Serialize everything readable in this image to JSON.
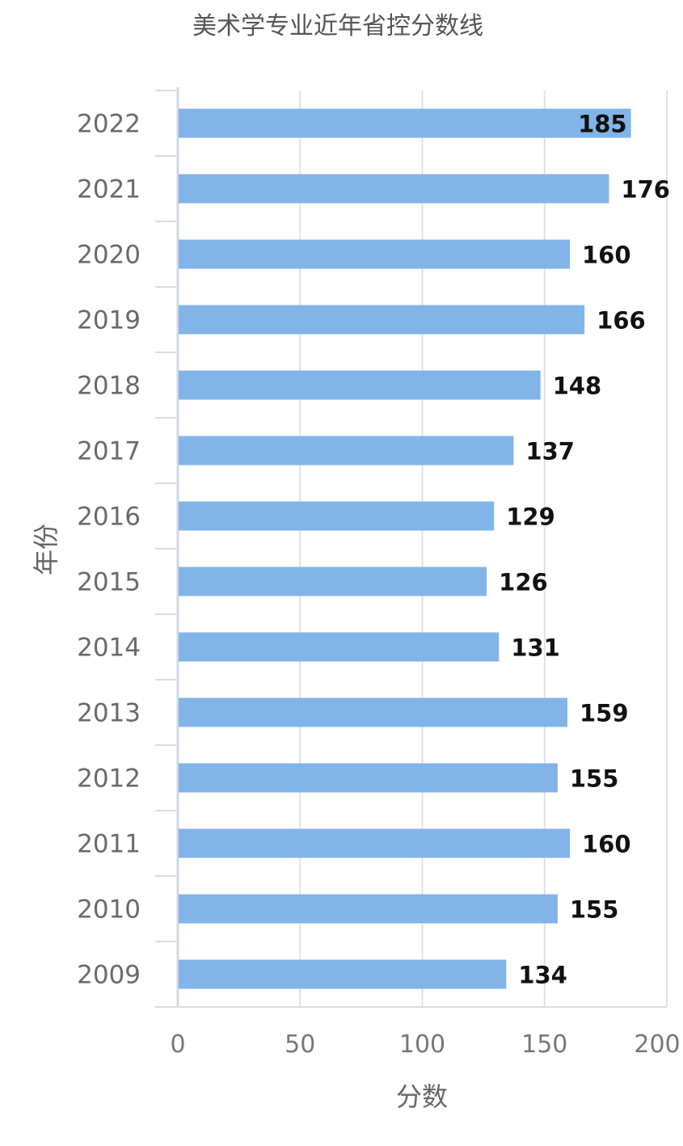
{
  "chart_data": {
    "type": "bar",
    "orientation": "horizontal",
    "title": "美术学专业近年省控分数线",
    "xlabel": "分数",
    "ylabel": "年份",
    "categories": [
      "2022",
      "2021",
      "2020",
      "2019",
      "2018",
      "2017",
      "2016",
      "2015",
      "2014",
      "2013",
      "2012",
      "2011",
      "2010",
      "2009"
    ],
    "values": [
      185,
      176,
      160,
      166,
      148,
      137,
      129,
      126,
      131,
      159,
      155,
      160,
      155,
      134
    ],
    "value_labels": [
      "185",
      "176",
      "160",
      "166",
      "148",
      "137",
      "129",
      "126",
      "131",
      "159",
      "155",
      "160",
      "155",
      "134"
    ],
    "xlim": [
      0,
      200
    ],
    "xticks": [
      "0",
      "50",
      "100",
      "150",
      "200"
    ],
    "grid": true,
    "legend": "none",
    "bar_color": "#82b4e8"
  }
}
